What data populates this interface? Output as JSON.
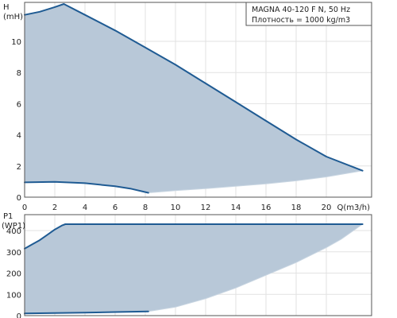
{
  "legend": {
    "line1": "MAGNA 40-120 F N, 50 Hz",
    "line2": "Плотность = 1000 kg/m3"
  },
  "colors": {
    "area_fill": "#b8c8d8",
    "curve": "#1f5b93",
    "grid": "#e2e2e2",
    "frame": "#555555"
  },
  "chart_data": [
    {
      "type": "area",
      "title": "",
      "ylabel": [
        "H",
        "(mH)"
      ],
      "xlabel": "Q(m3/h)",
      "xlim": [
        0,
        23
      ],
      "ylim": [
        0,
        12.5
      ],
      "xticks": [
        0,
        2,
        4,
        6,
        8,
        10,
        12,
        14,
        16,
        18,
        20
      ],
      "xtick_labels": [
        "0",
        "2",
        "4",
        "6",
        "8",
        "10",
        "12",
        "14",
        "16",
        "18",
        "20"
      ],
      "yticks": [
        0,
        2,
        4,
        6,
        8,
        10
      ],
      "ytick_labels": [
        "0",
        "2",
        "4",
        "6",
        "8",
        "10"
      ],
      "grid": true,
      "legend_position": "top-right",
      "series": [
        {
          "role": "max-curve",
          "x": [
            0,
            1,
            2,
            2.6,
            4,
            6,
            8,
            10,
            12,
            14,
            16,
            18,
            20,
            22.4
          ],
          "y": [
            11.7,
            11.9,
            12.2,
            12.4,
            11.7,
            10.7,
            9.6,
            8.5,
            7.3,
            6.1,
            4.9,
            3.7,
            2.6,
            1.7
          ]
        },
        {
          "role": "min-curve",
          "x": [
            0,
            2,
            4,
            6,
            7,
            8.2
          ],
          "y": [
            0.95,
            0.98,
            0.9,
            0.7,
            0.55,
            0.28
          ]
        },
        {
          "role": "min-envelope",
          "x": [
            8.2,
            10,
            12,
            14,
            16,
            18,
            20,
            22.4
          ],
          "y": [
            0.28,
            0.42,
            0.55,
            0.7,
            0.85,
            1.05,
            1.3,
            1.7
          ]
        }
      ]
    },
    {
      "type": "area",
      "title": "",
      "ylabel": [
        "P1",
        "(WP1)"
      ],
      "xlim": [
        0,
        23
      ],
      "ylim": [
        0,
        475
      ],
      "yticks": [
        0,
        100,
        200,
        300,
        400
      ],
      "ytick_labels": [
        "0",
        "100",
        "200",
        "300",
        "400"
      ],
      "grid": true,
      "series": [
        {
          "role": "max-curve",
          "x": [
            0,
            0.5,
            1,
            1.5,
            2,
            2.5,
            2.7,
            4,
            8,
            12,
            16,
            20,
            22.4
          ],
          "y": [
            315,
            335,
            355,
            380,
            405,
            425,
            430,
            430,
            430,
            430,
            430,
            430,
            430
          ]
        },
        {
          "role": "min-curve",
          "x": [
            0,
            2,
            4,
            6,
            8.2
          ],
          "y": [
            10,
            12,
            14,
            17,
            20
          ]
        },
        {
          "role": "min-envelope",
          "x": [
            8.2,
            10,
            12,
            14,
            16,
            18,
            20,
            21,
            22.4
          ],
          "y": [
            20,
            40,
            80,
            130,
            190,
            250,
            320,
            360,
            430
          ]
        }
      ]
    }
  ]
}
